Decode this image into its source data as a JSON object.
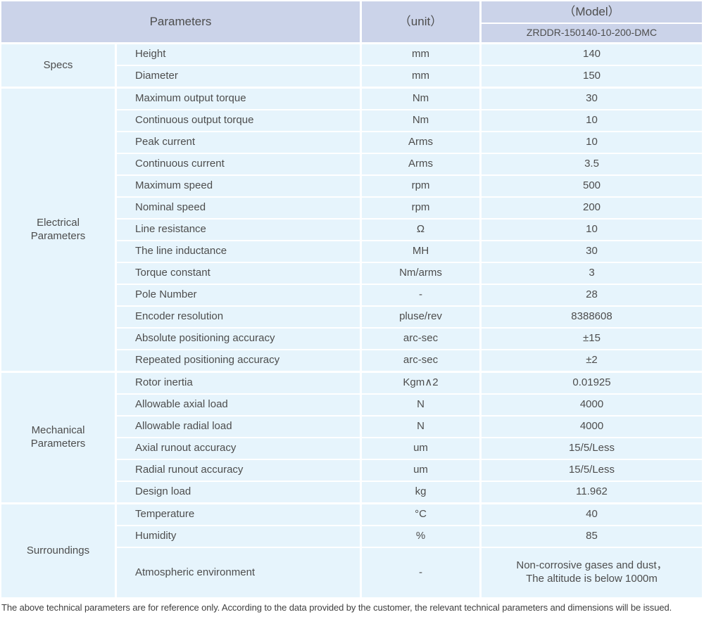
{
  "header": {
    "parameters_label": "Parameters",
    "unit_label": "（unit）",
    "model_label": "（Model）",
    "model_value": "ZRDDR-150140-10-200-DMC"
  },
  "colors": {
    "header_bg": "#cbd3e9",
    "cell_bg": "#e6f4fc",
    "text": "#4d4d4d"
  },
  "sections": [
    {
      "group": "Specs",
      "rows": [
        {
          "param": "Height",
          "unit": "mm",
          "value": "140"
        },
        {
          "param": "Diameter",
          "unit": "mm",
          "value": "150"
        }
      ]
    },
    {
      "group": "Electrical\nParameters",
      "rows": [
        {
          "param": "Maximum output torque",
          "unit": "Nm",
          "value": "30"
        },
        {
          "param": "Continuous output torque",
          "unit": "Nm",
          "value": "10"
        },
        {
          "param": "Peak current",
          "unit": "Arms",
          "value": "10"
        },
        {
          "param": "Continuous current",
          "unit": "Arms",
          "value": "3.5"
        },
        {
          "param": "Maximum speed",
          "unit": "rpm",
          "value": "500"
        },
        {
          "param": "Nominal speed",
          "unit": "rpm",
          "value": "200"
        },
        {
          "param": "Line resistance",
          "unit": "Ω",
          "value": "10"
        },
        {
          "param": "The line inductance",
          "unit": "MH",
          "value": "30"
        },
        {
          "param": "Torque constant",
          "unit": "Nm/arms",
          "value": "3"
        },
        {
          "param": "Pole Number",
          "unit": "-",
          "value": "28"
        },
        {
          "param": "Encoder resolution",
          "unit": "pluse/rev",
          "value": "8388608"
        },
        {
          "param": "Absolute positioning accuracy",
          "unit": "arc-sec",
          "value": "±15"
        },
        {
          "param": "Repeated positioning accuracy",
          "unit": "arc-sec",
          "value": "±2"
        }
      ]
    },
    {
      "group": "Mechanical\nParameters",
      "rows": [
        {
          "param": "Rotor inertia",
          "unit": "Kgm∧2",
          "value": "0.01925"
        },
        {
          "param": "Allowable axial load",
          "unit": "N",
          "value": "4000"
        },
        {
          "param": "Allowable radial load",
          "unit": "N",
          "value": "4000"
        },
        {
          "param": "Axial runout accuracy",
          "unit": "um",
          "value": "15/5/Less"
        },
        {
          "param": "Radial runout accuracy",
          "unit": "um",
          "value": "15/5/Less"
        },
        {
          "param": "Design load",
          "unit": "kg",
          "value": "11.962"
        }
      ]
    },
    {
      "group": "Surroundings",
      "rows": [
        {
          "param": "Temperature",
          "unit": "°C",
          "value": "40"
        },
        {
          "param": "Humidity",
          "unit": "%",
          "value": "85"
        },
        {
          "param": "Atmospheric environment",
          "unit": "-",
          "value": "Non-corrosive gases and dust，\nThe altitude is below 1000m"
        }
      ]
    }
  ],
  "footer": {
    "note": "The above technical parameters are for reference only. According to the data provided by the customer, the relevant technical parameters and dimensions will be issued."
  }
}
